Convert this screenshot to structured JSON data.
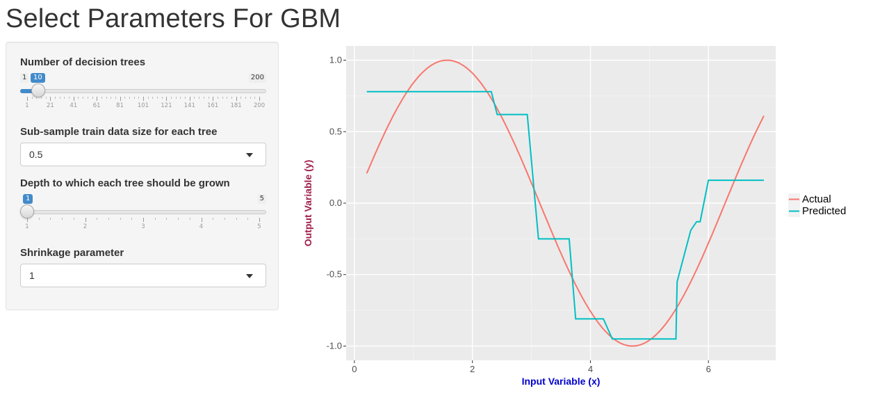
{
  "page": {
    "title": "Select Parameters For GBM"
  },
  "controls": {
    "trees": {
      "label": "Number of decision trees",
      "min": "1",
      "max": "200",
      "value": "10",
      "ticks": [
        "1",
        "21",
        "41",
        "61",
        "81",
        "101",
        "121",
        "141",
        "161",
        "181",
        "200"
      ]
    },
    "subsample": {
      "label": "Sub-sample train data size for each tree",
      "value": "0.5"
    },
    "depth": {
      "label": "Depth to which each tree should be grown",
      "min": "1",
      "max": "5",
      "value": "1",
      "ticks": [
        "1",
        "2",
        "3",
        "4",
        "5"
      ]
    },
    "shrinkage": {
      "label": "Shrinkage parameter",
      "value": "1"
    }
  },
  "colors": {
    "accent": "#428bca",
    "actual": "#F8766D",
    "predicted": "#00BFC4",
    "xlabel": "#0000cc",
    "ylabel": "#a0204a",
    "panel": "#ebebeb"
  },
  "chart_data": {
    "type": "line",
    "xlabel": "Input Variable (x)",
    "ylabel": "Output Variable (y)",
    "xlim": [
      -0.14,
      7.14
    ],
    "ylim": [
      -1.1,
      1.1
    ],
    "xticks": [
      "0",
      "2",
      "4",
      "6"
    ],
    "yticks": [
      "-1.0",
      "-0.5",
      "0.0",
      "0.5",
      "1.0"
    ],
    "legend_position": "right",
    "series": [
      {
        "name": "Actual",
        "function": "sin",
        "x_range": [
          0.21,
          6.94
        ]
      },
      {
        "name": "Predicted",
        "points": [
          [
            0.21,
            0.78
          ],
          [
            2.32,
            0.78
          ],
          [
            2.42,
            0.62
          ],
          [
            2.93,
            0.62
          ],
          [
            3.12,
            -0.25
          ],
          [
            3.64,
            -0.25
          ],
          [
            3.75,
            -0.81
          ],
          [
            4.22,
            -0.81
          ],
          [
            4.37,
            -0.95
          ],
          [
            5.45,
            -0.95
          ],
          [
            5.47,
            -0.55
          ],
          [
            5.7,
            -0.19
          ],
          [
            5.8,
            -0.13
          ],
          [
            5.86,
            -0.13
          ],
          [
            6.0,
            0.16
          ],
          [
            6.94,
            0.16
          ]
        ]
      }
    ]
  }
}
